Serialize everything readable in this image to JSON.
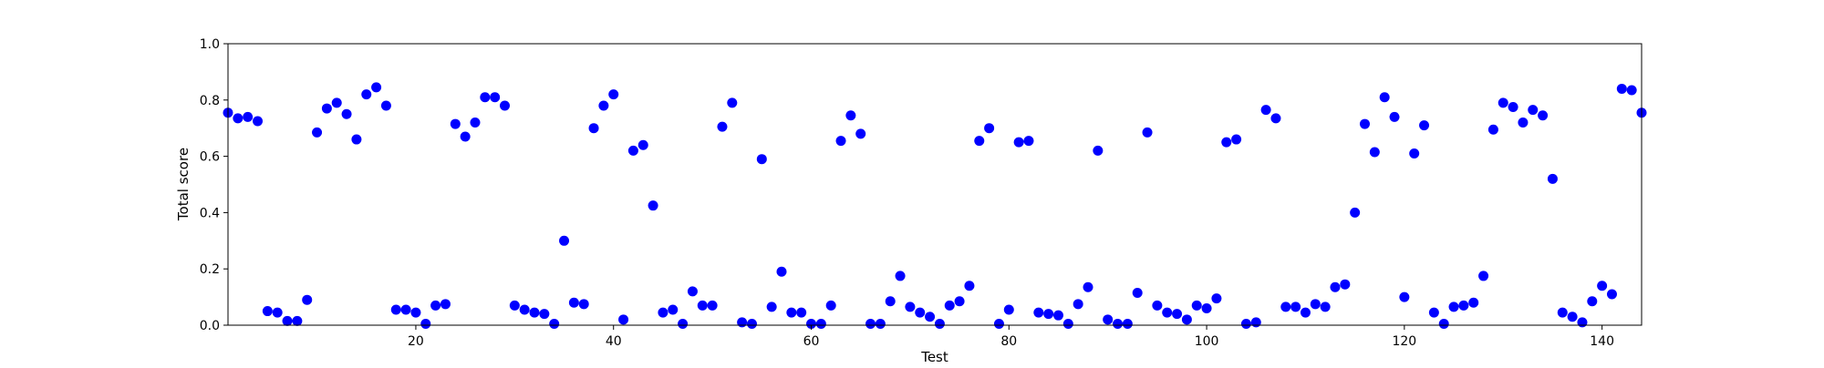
{
  "chart_data": {
    "type": "scatter",
    "title": "",
    "xlabel": "Test",
    "ylabel": "Total score",
    "xlim": [
      1,
      144
    ],
    "ylim": [
      0.0,
      1.0
    ],
    "x_ticks": [
      20,
      40,
      60,
      80,
      100,
      120,
      140
    ],
    "y_ticks": [
      0.0,
      0.2,
      0.4,
      0.6,
      0.8,
      1.0
    ],
    "x_tick_labels": [
      "20",
      "40",
      "60",
      "80",
      "100",
      "120",
      "140"
    ],
    "y_tick_labels": [
      "0.0",
      "0.2",
      "0.4",
      "0.6",
      "0.8",
      "1.0"
    ],
    "grid": false,
    "marker_color": "#0000ff",
    "series": [
      {
        "x": [
          1,
          2,
          3,
          4,
          5,
          6,
          7,
          8,
          9,
          10,
          11,
          12,
          13,
          14,
          15,
          16,
          17,
          18,
          19,
          20,
          21,
          22,
          23,
          24,
          25,
          26,
          27,
          28,
          29,
          30,
          31,
          32,
          33,
          34,
          35,
          36,
          37,
          38,
          39,
          40,
          41,
          42,
          43,
          44,
          45,
          46,
          47,
          48,
          49,
          50,
          51,
          52,
          53,
          54,
          55,
          56,
          57,
          58,
          59,
          60,
          61,
          62,
          63,
          64,
          65,
          66,
          67,
          68,
          69,
          70,
          71,
          72,
          73,
          74,
          75,
          76,
          77,
          78,
          79,
          80,
          81,
          82,
          83,
          84,
          85,
          86,
          87,
          88,
          89,
          90,
          91,
          92,
          93,
          94,
          95,
          96,
          97,
          98,
          99,
          100,
          101,
          102,
          103,
          104,
          105,
          106,
          107,
          108,
          109,
          110,
          111,
          112,
          113,
          114,
          115,
          116,
          117,
          118,
          119,
          120,
          121,
          122,
          123,
          124,
          125,
          126,
          127,
          128,
          129,
          130,
          131,
          132,
          133,
          134,
          135,
          136,
          137,
          138,
          139,
          140,
          141,
          142,
          143,
          144
        ],
        "y": [
          0.755,
          0.735,
          0.74,
          0.725,
          0.05,
          0.045,
          0.015,
          0.015,
          0.09,
          0.685,
          0.77,
          0.79,
          0.75,
          0.66,
          0.82,
          0.845,
          0.78,
          0.055,
          0.055,
          0.045,
          0.005,
          0.07,
          0.075,
          0.715,
          0.67,
          0.72,
          0.81,
          0.81,
          0.78,
          0.07,
          0.055,
          0.045,
          0.04,
          0.005,
          0.3,
          0.08,
          0.075,
          0.7,
          0.78,
          0.82,
          0.02,
          0.62,
          0.64,
          0.425,
          0.045,
          0.055,
          0.005,
          0.12,
          0.07,
          0.07,
          0.705,
          0.79,
          0.01,
          0.005,
          0.59,
          0.065,
          0.19,
          0.045,
          0.045,
          0.005,
          0.005,
          0.07,
          0.655,
          0.745,
          0.68,
          0.005,
          0.005,
          0.085,
          0.175,
          0.065,
          0.045,
          0.03,
          0.005,
          0.07,
          0.085,
          0.14,
          0.655,
          0.7,
          0.005,
          0.055,
          0.65,
          0.655,
          0.045,
          0.04,
          0.035,
          0.005,
          0.075,
          0.135,
          0.62,
          0.02,
          0.005,
          0.005,
          0.115,
          0.685,
          0.07,
          0.045,
          0.04,
          0.02,
          0.07,
          0.06,
          0.095,
          0.65,
          0.66,
          0.005,
          0.01,
          0.765,
          0.735,
          0.065,
          0.065,
          0.045,
          0.075,
          0.065,
          0.135,
          0.145,
          0.4,
          0.715,
          0.615,
          0.81,
          0.74,
          0.1,
          0.61,
          0.71,
          0.045,
          0.005,
          0.065,
          0.07,
          0.08,
          0.175,
          0.695,
          0.79,
          0.775,
          0.72,
          0.765,
          0.745,
          0.52,
          0.045,
          0.03,
          0.01,
          0.085,
          0.14,
          0.11,
          0.84,
          0.835,
          0.755
        ]
      }
    ]
  }
}
